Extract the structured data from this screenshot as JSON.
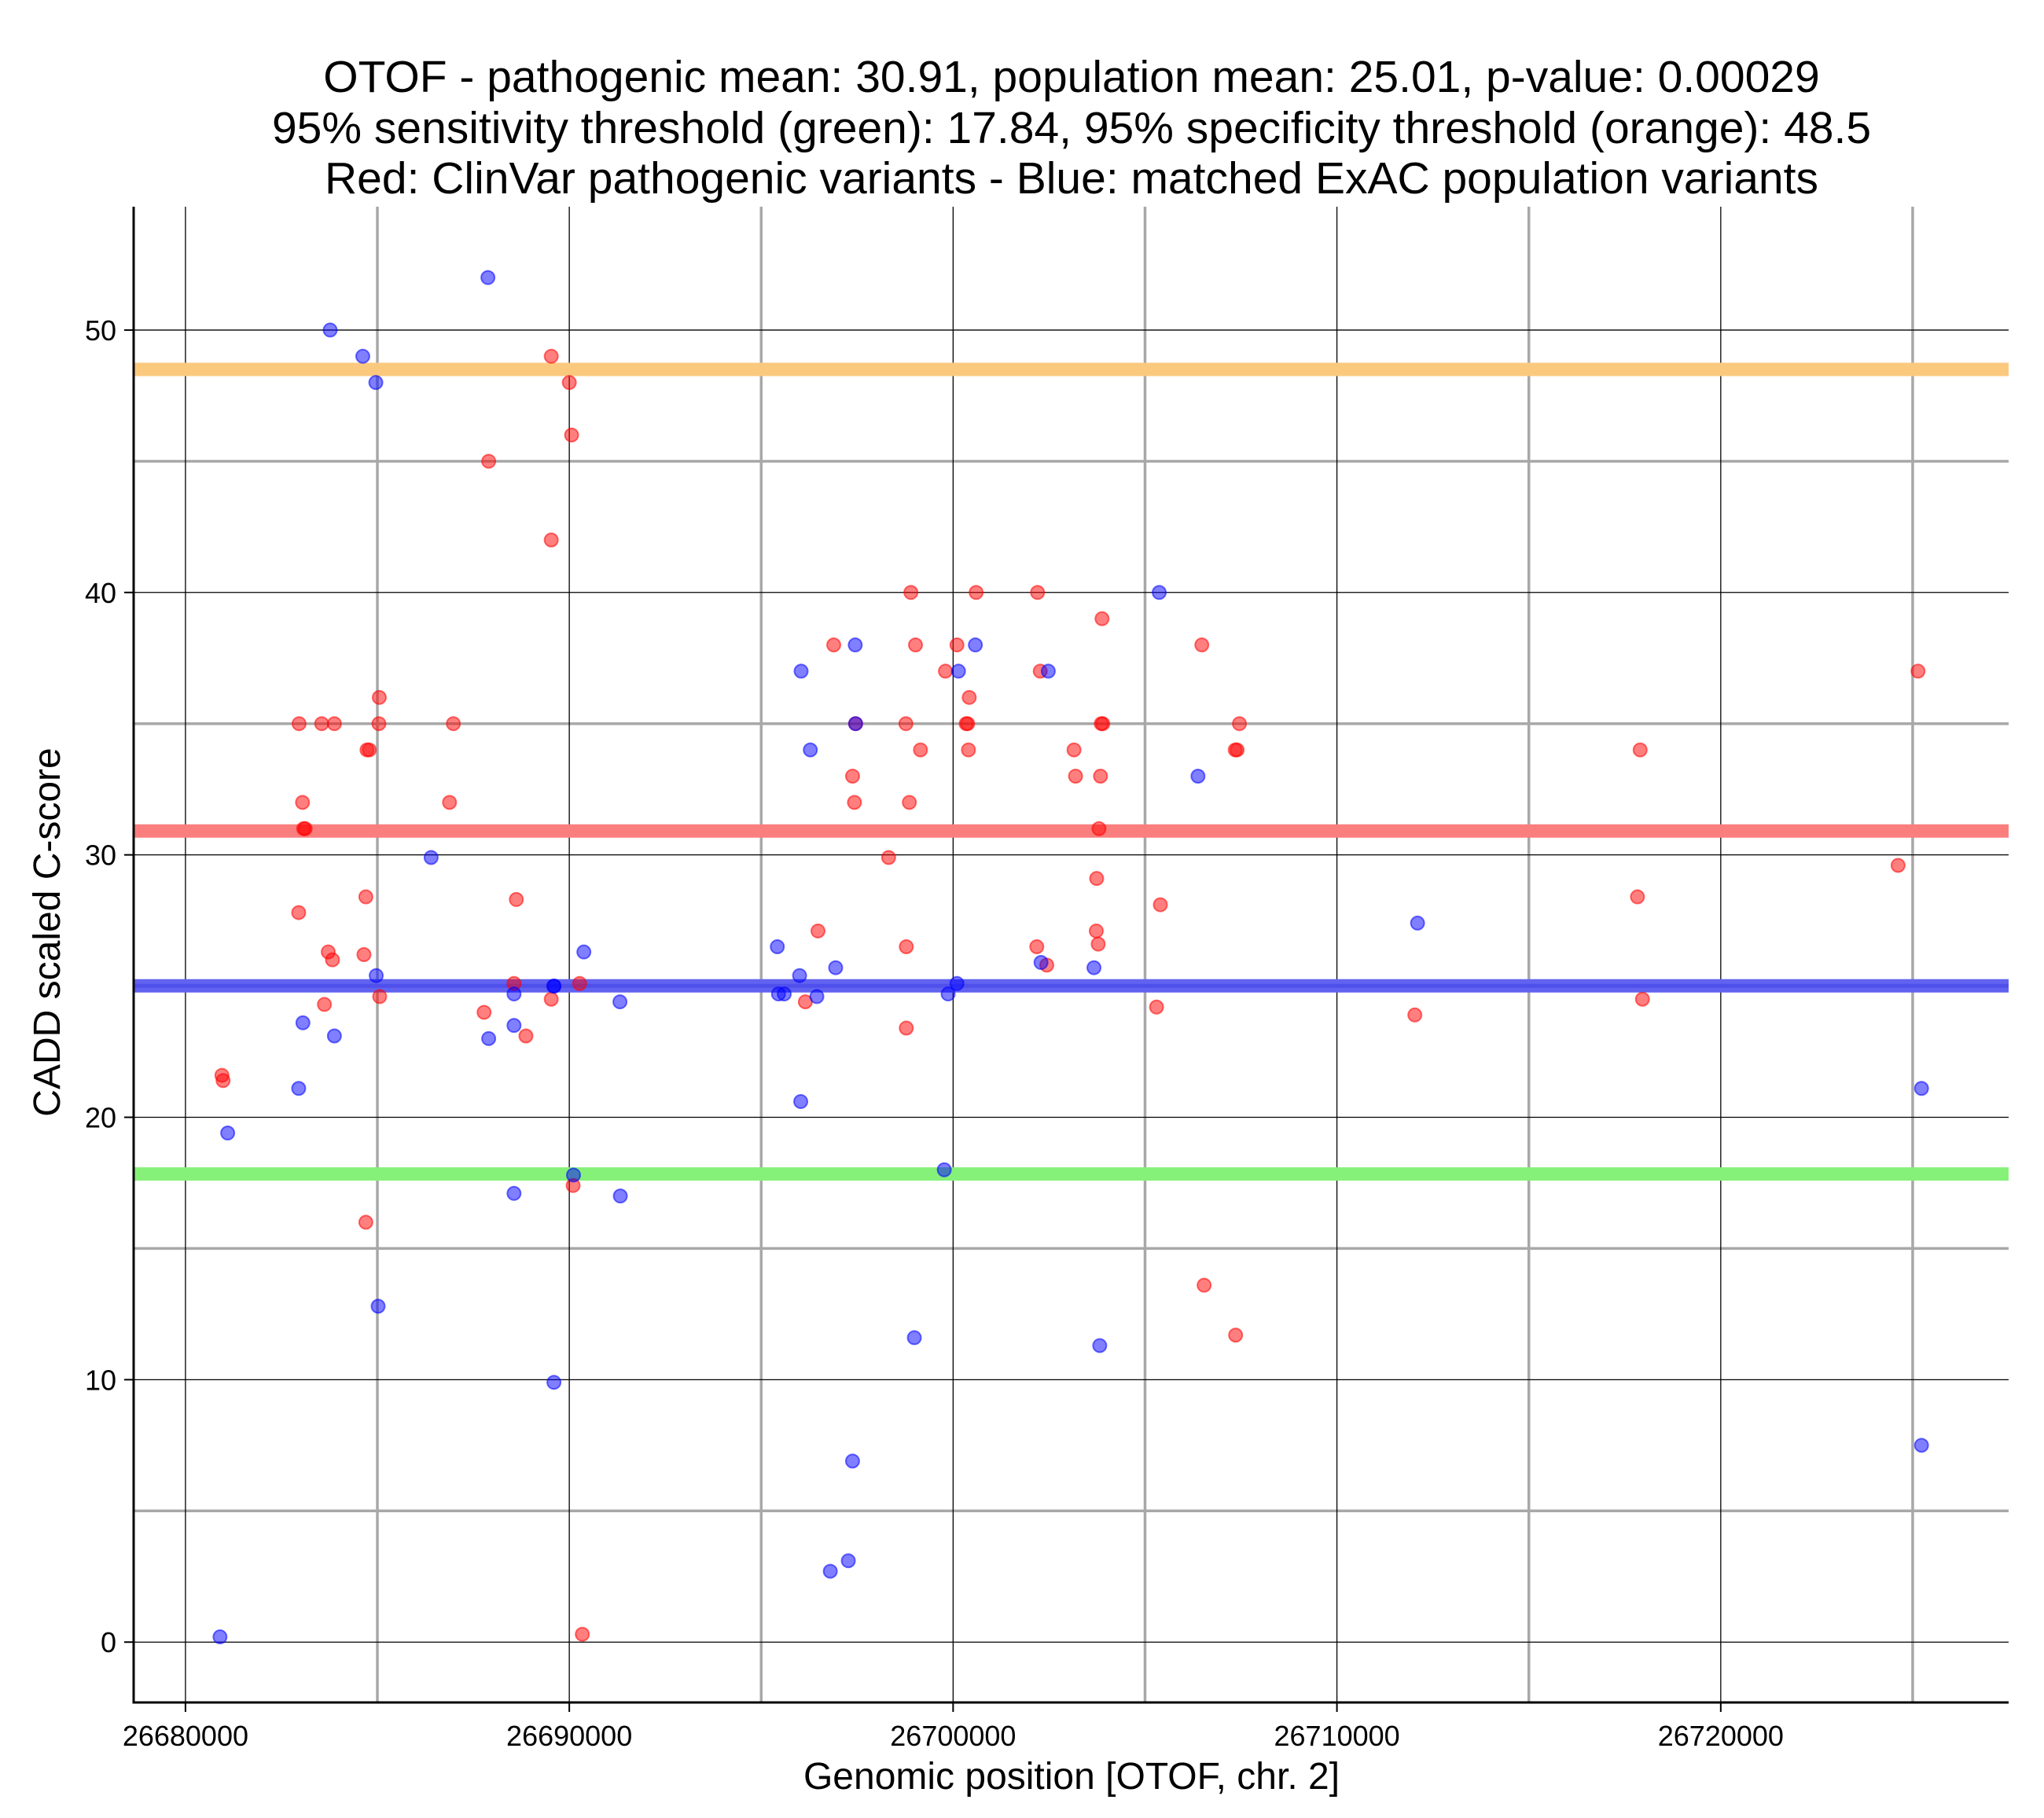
{
  "chart_data": {
    "type": "scatter",
    "title": [
      "OTOF - pathogenic mean: 30.91, population mean: 25.01, p-value: 0.00029",
      "95% sensitivity threshold (green): 17.84, 95% specificity threshold (orange): 48.5",
      "Red: ClinVar pathogenic variants - Blue: matched ExAC population variants"
    ],
    "xlabel": "Genomic position [OTOF, chr. 2]",
    "ylabel": "CADD scaled C-score",
    "xlim": [
      26678650,
      26727500
    ],
    "ylim": [
      -2.3,
      54.7
    ],
    "xticks": [
      26680000,
      26690000,
      26700000,
      26710000,
      26720000
    ],
    "xtick_labels": [
      "26680000",
      "26690000",
      "26700000",
      "26710000",
      "26720000"
    ],
    "xminor": [
      26685000,
      26695000,
      26705000,
      26715000,
      26725000
    ],
    "yticks": [
      0,
      10,
      20,
      30,
      40,
      50
    ],
    "ytick_labels": [
      "0",
      "10",
      "20",
      "30",
      "40",
      "50"
    ],
    "yminor": [
      5,
      15,
      25,
      35,
      45
    ],
    "grid": true,
    "hlines": [
      {
        "name": "specificity threshold",
        "y": 48.5,
        "color": "#fbc97e"
      },
      {
        "name": "pathogenic mean",
        "y": 30.91,
        "color": "#fa7e7e"
      },
      {
        "name": "population mean",
        "y": 25.01,
        "color": "#6262f0"
      },
      {
        "name": "sensitivity threshold",
        "y": 17.84,
        "color": "#86f179"
      }
    ],
    "series": [
      {
        "name": "ClinVar pathogenic variants",
        "color": "#ff0000",
        "points": [
          [
            26680950,
            21.6
          ],
          [
            26680980,
            21.4
          ],
          [
            26682960,
            35.0
          ],
          [
            26682950,
            27.8
          ],
          [
            26683050,
            32.0
          ],
          [
            26683080,
            31.0
          ],
          [
            26683120,
            31.0
          ],
          [
            26683550,
            35.0
          ],
          [
            26683620,
            24.3
          ],
          [
            26683720,
            26.3
          ],
          [
            26683830,
            26.0
          ],
          [
            26683880,
            35.0
          ],
          [
            26684650,
            26.2
          ],
          [
            26684700,
            28.4
          ],
          [
            26684700,
            16.0
          ],
          [
            26684730,
            34.0
          ],
          [
            26684790,
            34.0
          ],
          [
            26685050,
            36.0
          ],
          [
            26685040,
            35.0
          ],
          [
            26685060,
            24.6
          ],
          [
            26686880,
            32.0
          ],
          [
            26686980,
            35.0
          ],
          [
            26687780,
            24.0
          ],
          [
            26687900,
            45.0
          ],
          [
            26688620,
            28.3
          ],
          [
            26688560,
            25.1
          ],
          [
            26688870,
            23.1
          ],
          [
            26689530,
            49.0
          ],
          [
            26689530,
            42.0
          ],
          [
            26689530,
            24.5
          ],
          [
            26690000,
            48.0
          ],
          [
            26690060,
            46.0
          ],
          [
            26690100,
            17.4
          ],
          [
            26690270,
            25.1
          ],
          [
            26690340,
            0.3
          ],
          [
            26696150,
            24.4
          ],
          [
            26696480,
            27.1
          ],
          [
            26696890,
            38.0
          ],
          [
            26697380,
            33.0
          ],
          [
            26697430,
            32.0
          ],
          [
            26697460,
            35.0
          ],
          [
            26698320,
            29.9
          ],
          [
            26698770,
            35.0
          ],
          [
            26698780,
            26.5
          ],
          [
            26698780,
            23.4
          ],
          [
            26698860,
            32.0
          ],
          [
            26698900,
            40.0
          ],
          [
            26699020,
            38.0
          ],
          [
            26699150,
            34.0
          ],
          [
            26699800,
            37.0
          ],
          [
            26700100,
            38.0
          ],
          [
            26700340,
            35.0
          ],
          [
            26700380,
            35.0
          ],
          [
            26700400,
            34.0
          ],
          [
            26700420,
            36.0
          ],
          [
            26700600,
            40.0
          ],
          [
            26702180,
            26.5
          ],
          [
            26702200,
            40.0
          ],
          [
            26702270,
            37.0
          ],
          [
            26702440,
            25.8
          ],
          [
            26703150,
            34.0
          ],
          [
            26703190,
            33.0
          ],
          [
            26703740,
            29.1
          ],
          [
            26703730,
            27.1
          ],
          [
            26703780,
            26.6
          ],
          [
            26703800,
            31.0
          ],
          [
            26703840,
            33.0
          ],
          [
            26703860,
            35.0
          ],
          [
            26703880,
            39.0
          ],
          [
            26703900,
            35.0
          ],
          [
            26705300,
            24.2
          ],
          [
            26705400,
            28.1
          ],
          [
            26706480,
            38.0
          ],
          [
            26706540,
            13.6
          ],
          [
            26707360,
            11.7
          ],
          [
            26707350,
            34.0
          ],
          [
            26707400,
            34.0
          ],
          [
            26707460,
            35.0
          ],
          [
            26712030,
            23.9
          ],
          [
            26717830,
            28.4
          ],
          [
            26717900,
            34.0
          ],
          [
            26717960,
            24.5
          ],
          [
            26724620,
            29.6
          ],
          [
            26725140,
            37.0
          ]
        ]
      },
      {
        "name": "matched ExAC population variants",
        "color": "#0000ff",
        "points": [
          [
            26680900,
            0.2
          ],
          [
            26681100,
            19.4
          ],
          [
            26682950,
            21.1
          ],
          [
            26683060,
            23.6
          ],
          [
            26683770,
            50.0
          ],
          [
            26683880,
            23.1
          ],
          [
            26684620,
            49.0
          ],
          [
            26684960,
            48.0
          ],
          [
            26684970,
            25.4
          ],
          [
            26685020,
            12.8
          ],
          [
            26686400,
            29.9
          ],
          [
            26687880,
            52.0
          ],
          [
            26687900,
            23.0
          ],
          [
            26688560,
            24.7
          ],
          [
            26688560,
            23.5
          ],
          [
            26688560,
            17.1
          ],
          [
            26689600,
            25.0
          ],
          [
            26689600,
            25.0
          ],
          [
            26689600,
            9.9
          ],
          [
            26690110,
            17.8
          ],
          [
            26690380,
            26.3
          ],
          [
            26691320,
            24.4
          ],
          [
            26691330,
            17.0
          ],
          [
            26695420,
            26.5
          ],
          [
            26695450,
            24.7
          ],
          [
            26695600,
            24.7
          ],
          [
            26696000,
            25.4
          ],
          [
            26696040,
            37.0
          ],
          [
            26696030,
            20.6
          ],
          [
            26696280,
            34.0
          ],
          [
            26696450,
            24.6
          ],
          [
            26696940,
            25.7
          ],
          [
            26696800,
            2.7
          ],
          [
            26697270,
            3.1
          ],
          [
            26697380,
            6.9
          ],
          [
            26697450,
            38.0
          ],
          [
            26697460,
            35.0
          ],
          [
            26698990,
            11.6
          ],
          [
            26699770,
            18.0
          ],
          [
            26699870,
            24.7
          ],
          [
            26700100,
            25.1
          ],
          [
            26700140,
            37.0
          ],
          [
            26700580,
            38.0
          ],
          [
            26702290,
            25.9
          ],
          [
            26702480,
            37.0
          ],
          [
            26703670,
            25.7
          ],
          [
            26703820,
            11.3
          ],
          [
            26705370,
            40.0
          ],
          [
            26706380,
            33.0
          ],
          [
            26712100,
            27.4
          ],
          [
            26725230,
            21.1
          ],
          [
            26725230,
            7.5
          ]
        ]
      }
    ]
  }
}
